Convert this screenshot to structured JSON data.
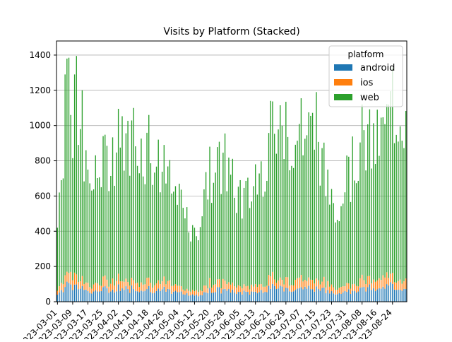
{
  "chart_data": {
    "type": "bar",
    "stacked": true,
    "title": "Visits by Platform (Stacked)",
    "xlabel": "",
    "ylabel": "",
    "ylim": [
      0,
      1480
    ],
    "yticks": [
      0,
      200,
      400,
      600,
      800,
      1000,
      1200,
      1400
    ],
    "grid": "y",
    "legend": {
      "title": "platform",
      "placement": "top-right"
    },
    "x_start": "2023-03-01",
    "x_end": "2023-08-31",
    "xtick_labels": [
      "2023-03-01",
      "2023-03-09",
      "2023-03-17",
      "2023-03-25",
      "2023-04-02",
      "2023-04-10",
      "2023-04-18",
      "2023-04-26",
      "2023-05-04",
      "2023-05-12",
      "2023-05-20",
      "2023-05-28",
      "2023-06-05",
      "2023-06-13",
      "2023-06-21",
      "2023-06-29",
      "2023-07-07",
      "2023-07-15",
      "2023-07-23",
      "2023-07-31",
      "2023-08-08",
      "2023-08-16",
      "2023-08-24"
    ],
    "series": [
      {
        "name": "android",
        "color": "#1f77b4",
        "values": []
      },
      {
        "name": "ios",
        "color": "#ff7f0e",
        "values": []
      },
      {
        "name": "web",
        "color": "#2ca02c",
        "values": []
      }
    ],
    "notes_totals_sample": {
      "2023-03-02": 620,
      "2023-03-03": 690,
      "2023-03-04": 700,
      "2023-03-05": 1290,
      "2023-03-06": 1380,
      "2023-03-07": 1385,
      "2023-03-08": 1060,
      "2023-03-09": 815,
      "2023-03-10": 1290,
      "2023-03-11": 1395,
      "2023-03-12": 890,
      "2023-03-13": 980,
      "2023-03-14": 1200,
      "2023-03-17": 750,
      "2023-03-25": 940,
      "2023-04-02": 1095,
      "2023-04-10": 1100,
      "2023-04-18": 1060,
      "2023-04-26": 890,
      "2023-05-04": 670,
      "2023-05-12": 420,
      "2023-05-20": 880,
      "2023-05-28": 955,
      "2023-06-05": 690,
      "2023-06-13": 780,
      "2023-06-21": 1140,
      "2023-06-29": 1135,
      "2023-07-07": 1155,
      "2023-07-15": 1190,
      "2023-07-23": 640,
      "2023-07-31": 830,
      "2023-08-08": 1120,
      "2023-08-16": 1090,
      "2023-08-24": 1330
    }
  }
}
